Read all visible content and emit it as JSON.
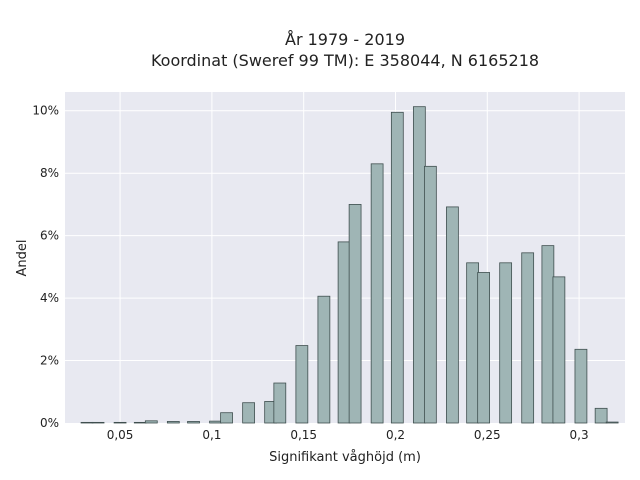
{
  "chart_data": {
    "type": "bar",
    "title": "År 1979 - 2019",
    "subtitle": "Koordinat (Sweref 99 TM): E 358044, N 6165218",
    "xlabel": "Signifikant våghöjd (m)",
    "ylabel": "Andel",
    "xlim": [
      0.02,
      0.325
    ],
    "ylim": [
      0,
      10.6
    ],
    "x_ticks": [
      0.05,
      0.1,
      0.15,
      0.2,
      0.25,
      0.3
    ],
    "x_tick_labels": [
      "0,05",
      "0,1",
      "0,15",
      "0,2",
      "0,25",
      "0,3"
    ],
    "y_ticks": [
      0,
      2,
      4,
      6,
      8,
      10
    ],
    "y_tick_labels": [
      "0%",
      "2%",
      "4%",
      "6%",
      "8%",
      "10%"
    ],
    "bar_width": 0.0065,
    "grid": true,
    "legend": "none",
    "colors": {
      "bar_fill": "#9fb5b5",
      "bar_stroke": "#3f4f4f",
      "plot_bg": "#e8e9f1",
      "grid": "#ffffff"
    },
    "bars": [
      {
        "x": 0.032,
        "value": 0.02
      },
      {
        "x": 0.038,
        "value": 0.02
      },
      {
        "x": 0.05,
        "value": 0.02
      },
      {
        "x": 0.061,
        "value": 0.02
      },
      {
        "x": 0.067,
        "value": 0.07
      },
      {
        "x": 0.079,
        "value": 0.05
      },
      {
        "x": 0.09,
        "value": 0.05
      },
      {
        "x": 0.102,
        "value": 0.06
      },
      {
        "x": 0.108,
        "value": 0.33
      },
      {
        "x": 0.12,
        "value": 0.65
      },
      {
        "x": 0.132,
        "value": 0.69
      },
      {
        "x": 0.137,
        "value": 1.28
      },
      {
        "x": 0.149,
        "value": 2.48
      },
      {
        "x": 0.161,
        "value": 4.06
      },
      {
        "x": 0.172,
        "value": 5.8
      },
      {
        "x": 0.178,
        "value": 7.0
      },
      {
        "x": 0.19,
        "value": 8.3
      },
      {
        "x": 0.201,
        "value": 9.95
      },
      {
        "x": 0.213,
        "value": 10.13
      },
      {
        "x": 0.219,
        "value": 8.22
      },
      {
        "x": 0.231,
        "value": 6.92
      },
      {
        "x": 0.242,
        "value": 5.13
      },
      {
        "x": 0.248,
        "value": 4.82
      },
      {
        "x": 0.26,
        "value": 5.13
      },
      {
        "x": 0.272,
        "value": 5.45
      },
      {
        "x": 0.283,
        "value": 5.68
      },
      {
        "x": 0.289,
        "value": 4.68
      },
      {
        "x": 0.301,
        "value": 2.36
      },
      {
        "x": 0.312,
        "value": 0.47
      },
      {
        "x": 0.318,
        "value": 0.03
      }
    ]
  }
}
